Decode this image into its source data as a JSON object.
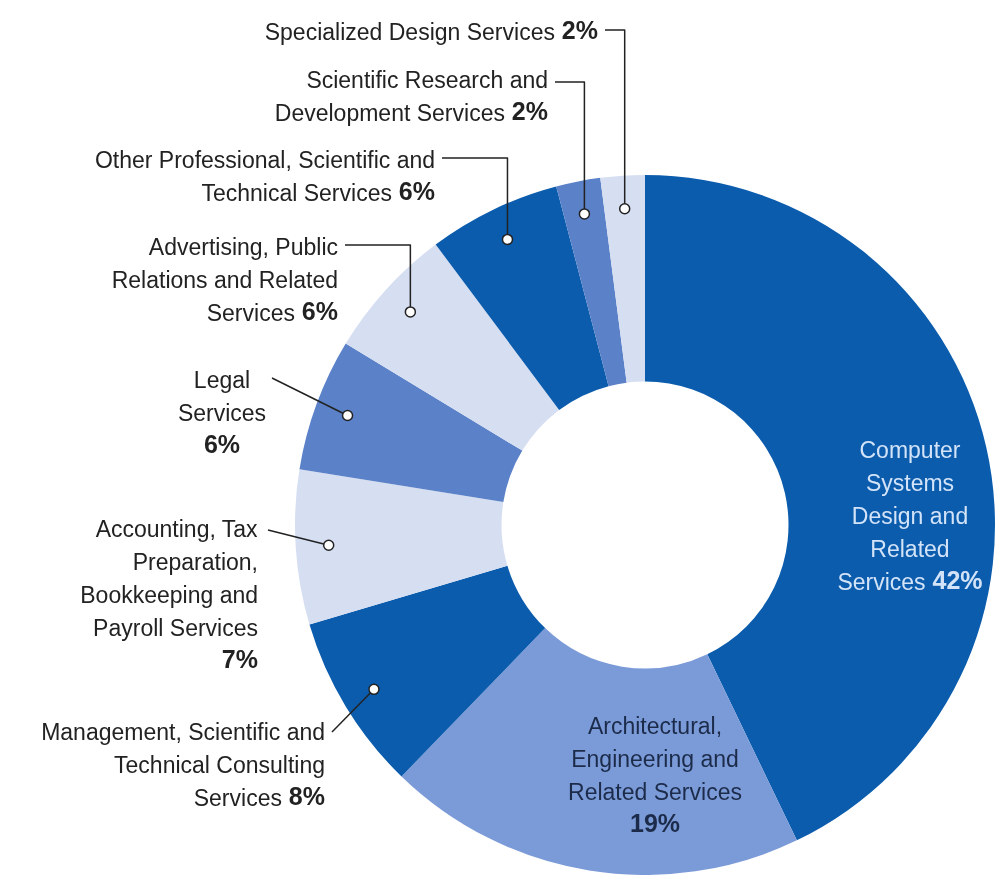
{
  "chart_data": {
    "type": "donut",
    "categories": [
      "Computer Systems Design and Related Services",
      "Architectural, Engineering and Related Services",
      "Management, Scientific and Technical Consulting Services",
      "Accounting, Tax Preparation, Bookkeeping and Payroll Services",
      "Legal Services",
      "Advertising, Public Relations and Related Services",
      "Other Professional, Scientific and Technical Services",
      "Scientific Research and Development Services",
      "Specialized Design Services"
    ],
    "values": [
      42,
      19,
      8,
      7,
      6,
      6,
      6,
      2,
      2
    ],
    "colors": [
      "#0b5cad",
      "#7b9bd8",
      "#0b5cad",
      "#d6def2",
      "#5b82c8",
      "#d6def2",
      "#0b5cad",
      "#5b82c8",
      "#d6def2"
    ],
    "value_labels": [
      "42%",
      "19%",
      "8%",
      "7%",
      "6%",
      "6%",
      "6%",
      "2%",
      "2%"
    ]
  }
}
